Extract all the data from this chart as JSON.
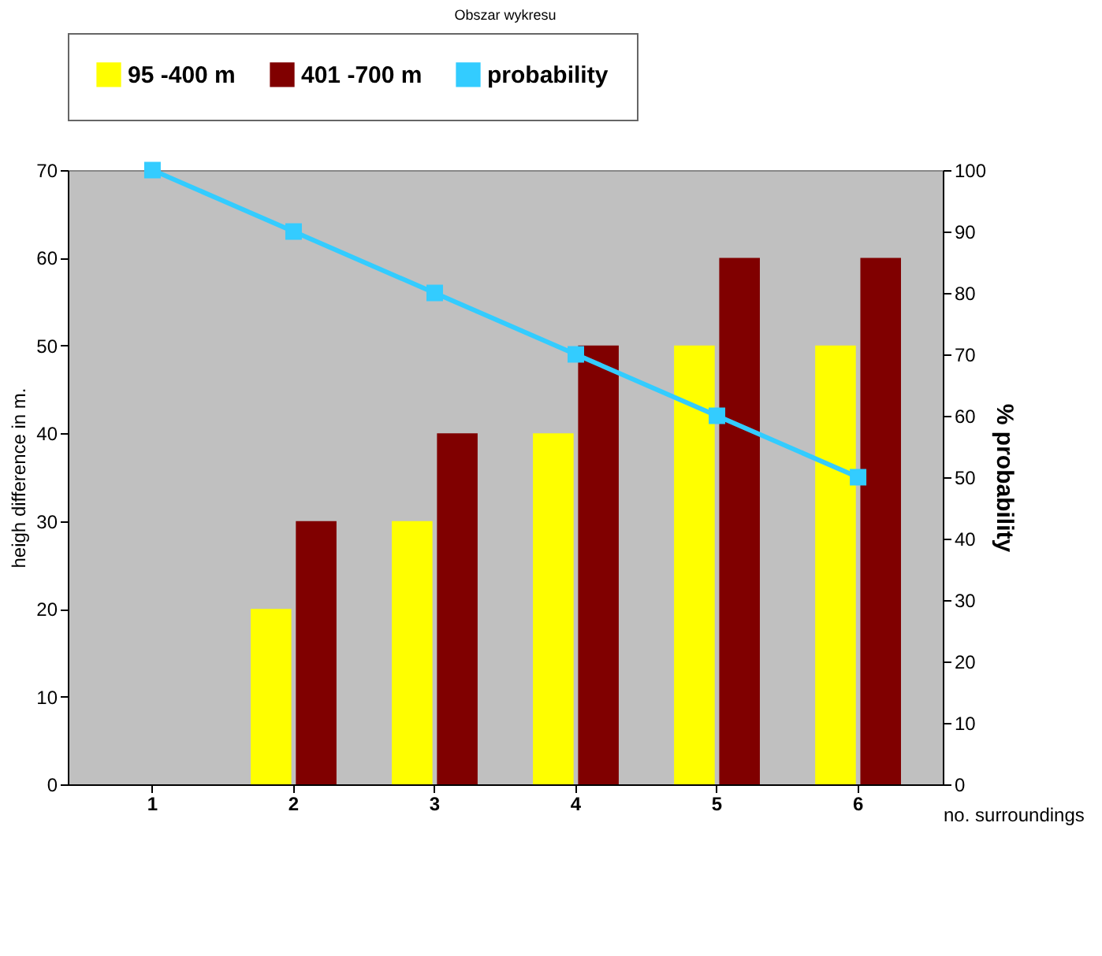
{
  "chart_data": {
    "type": "bar",
    "categories": [
      "1",
      "2",
      "3",
      "4",
      "5",
      "6"
    ],
    "series": [
      {
        "name": "95 -400 m",
        "color": "#ffff00",
        "values": [
          null,
          20,
          30,
          40,
          50,
          50
        ]
      },
      {
        "name": "401 -700 m",
        "color": "#800000",
        "values": [
          null,
          30,
          40,
          50,
          60,
          60
        ]
      },
      {
        "name": "probability",
        "color": "#33ccff",
        "type": "line",
        "axis": "y2",
        "values": [
          100,
          90,
          80,
          70,
          60,
          50
        ]
      }
    ],
    "ylim": [
      0,
      70
    ],
    "yticks": [
      0,
      10,
      20,
      30,
      40,
      50,
      60,
      70
    ],
    "y2lim": [
      0,
      100
    ],
    "y2ticks": [
      0,
      10,
      20,
      30,
      40,
      50,
      60,
      70,
      80,
      90,
      100
    ],
    "xlabel": "no. surroundings",
    "ylabel": "heigh difference in m.",
    "y2label": "% probability",
    "legend": "top",
    "grid": false,
    "marker": "square",
    "line_style": "solid",
    "annotations": [
      "Obszar wykresu"
    ]
  }
}
